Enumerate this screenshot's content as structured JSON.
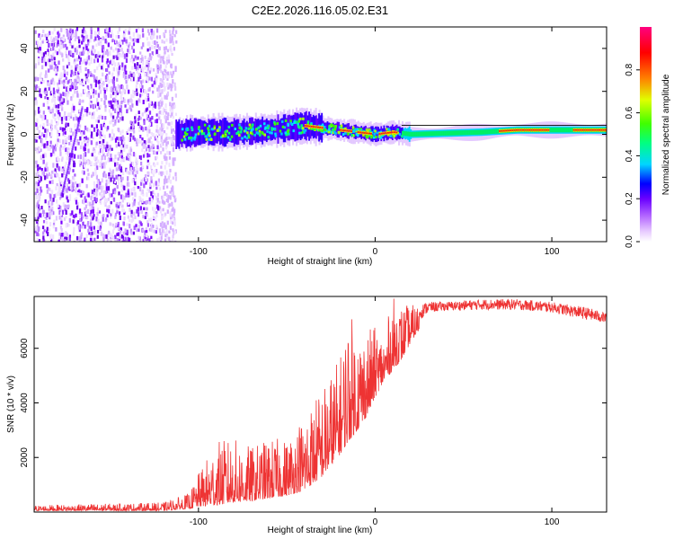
{
  "title": "C2E2.2026.116.05.02.E31",
  "chart_data": [
    {
      "type": "heatmap",
      "name": "spectrogram",
      "xlabel": "Height of straight line (km)",
      "ylabel": "Frequency (Hz)",
      "xlim": [
        -193,
        131
      ],
      "ylim": [
        -50,
        50
      ],
      "xticks": [
        -100,
        0,
        100
      ],
      "yticks": [
        -40,
        -20,
        0,
        20,
        40
      ],
      "noise_region_x": [
        -193,
        -117
      ],
      "signal_track": {
        "x": [
          -113,
          -100,
          -80,
          -60,
          -40,
          -30,
          -20,
          -10,
          0,
          10,
          20,
          60,
          80,
          100,
          131
        ],
        "y": [
          0,
          1,
          1,
          2,
          4,
          3,
          2,
          1,
          0,
          1,
          0,
          1,
          2,
          2,
          2
        ]
      },
      "colorbar": {
        "label": "Normalized spectral amplitude",
        "range": [
          0,
          1
        ],
        "ticks": [
          "0.0",
          "0.2",
          "0.4",
          "0.6",
          "0.8"
        ],
        "colors": [
          "#ffffff",
          "#d9a6ff",
          "#8000ff",
          "#0000ff",
          "#00e5ff",
          "#00ff40",
          "#ffff00",
          "#ff8000",
          "#ff0000",
          "#ff0080"
        ]
      }
    },
    {
      "type": "line",
      "name": "snr",
      "xlabel": "Height of straight line (km)",
      "ylabel": "SNR (10 * v/v)",
      "xlim": [
        -193,
        131
      ],
      "ylim": [
        0,
        7900
      ],
      "xticks": [
        -100,
        0,
        100
      ],
      "yticks": [
        2000,
        4000,
        6000
      ],
      "color": "#ee3333",
      "envelope": {
        "x": [
          -193,
          -120,
          -105,
          -100,
          -90,
          -80,
          -70,
          -60,
          -50,
          -40,
          -30,
          -20,
          -15,
          -10,
          -5,
          0,
          5,
          10,
          15,
          20,
          25,
          30,
          40,
          60,
          80,
          100,
          120,
          131
        ],
        "y_low": [
          50,
          50,
          120,
          200,
          250,
          350,
          400,
          500,
          600,
          800,
          1300,
          2100,
          2600,
          3000,
          3500,
          4200,
          4800,
          5200,
          5600,
          6200,
          6700,
          7100,
          7200,
          7200,
          7200,
          7100,
          6800,
          6700
        ],
        "y_high": [
          250,
          350,
          700,
          1400,
          2600,
          2700,
          2400,
          2700,
          2700,
          3700,
          4600,
          5700,
          7400,
          6800,
          6700,
          6800,
          6500,
          7900,
          7600,
          7600,
          7600,
          7700,
          7700,
          7800,
          7800,
          7700,
          7500,
          7300
        ]
      }
    }
  ]
}
